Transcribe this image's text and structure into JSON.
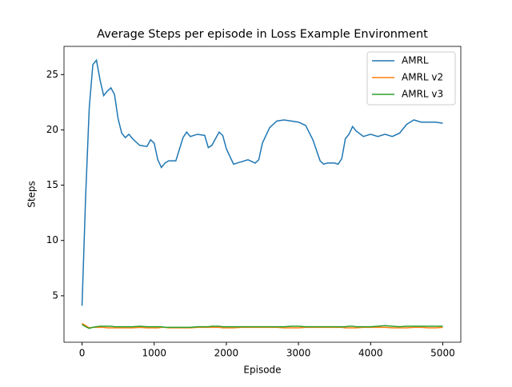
{
  "chart_data": {
    "type": "line",
    "title": "Average Steps per episode in Loss Example Environment",
    "x_label": "Episode",
    "y_label": "Steps",
    "x": [
      0,
      50,
      100,
      150,
      200,
      250,
      300,
      350,
      400,
      450,
      500,
      550,
      600,
      650,
      700,
      800,
      900,
      950,
      1000,
      1050,
      1100,
      1150,
      1200,
      1300,
      1400,
      1450,
      1500,
      1600,
      1700,
      1750,
      1800,
      1900,
      1950,
      2000,
      2100,
      2200,
      2300,
      2400,
      2450,
      2500,
      2600,
      2700,
      2800,
      2900,
      3000,
      3100,
      3200,
      3300,
      3350,
      3400,
      3500,
      3550,
      3600,
      3650,
      3700,
      3750,
      3800,
      3900,
      4000,
      4100,
      4200,
      4300,
      4400,
      4500,
      4600,
      4700,
      4800,
      4900,
      5000
    ],
    "series": [
      {
        "name": "AMRL",
        "color": "#1f77b4",
        "values": [
          4.1,
          14,
          22,
          25.9,
          26.3,
          24.5,
          23.1,
          23.5,
          23.8,
          23.2,
          21,
          19.7,
          19.3,
          19.6,
          19.2,
          18.6,
          18.5,
          19.1,
          18.8,
          17.3,
          16.6,
          17,
          17.2,
          17.2,
          19.3,
          19.8,
          19.4,
          19.6,
          19.5,
          18.4,
          18.6,
          19.8,
          19.5,
          18.3,
          16.9,
          17.1,
          17.3,
          17,
          17.3,
          18.8,
          20.2,
          20.8,
          20.9,
          20.8,
          20.7,
          20.4,
          19.1,
          17.2,
          16.9,
          17,
          17,
          16.9,
          17.4,
          19.2,
          19.6,
          20.3,
          19.9,
          19.4,
          19.6,
          19.4,
          19.6,
          19.4,
          19.7,
          20.5,
          20.9,
          20.7,
          20.7,
          20.7,
          20.6
        ]
      },
      {
        "name": "AMRL v2",
        "color": "#ff7f0e",
        "values": [
          2.5,
          2.3,
          2.1,
          2.15,
          2.15,
          2.15,
          2.15,
          2.1,
          2.1,
          2.1,
          2.1,
          2.1,
          2.1,
          2.1,
          2.1,
          2.15,
          2.1,
          2.1,
          2.1,
          2.1,
          2.15,
          2.15,
          2.1,
          2.1,
          2.1,
          2.1,
          2.1,
          2.15,
          2.15,
          2.15,
          2.15,
          2.15,
          2.1,
          2.1,
          2.1,
          2.15,
          2.15,
          2.15,
          2.15,
          2.15,
          2.15,
          2.15,
          2.1,
          2.1,
          2.1,
          2.15,
          2.15,
          2.15,
          2.15,
          2.15,
          2.15,
          2.15,
          2.15,
          2.1,
          2.1,
          2.1,
          2.1,
          2.15,
          2.15,
          2.15,
          2.15,
          2.1,
          2.1,
          2.1,
          2.15,
          2.15,
          2.1,
          2.1,
          2.15
        ]
      },
      {
        "name": "AMRL v3",
        "color": "#2ca02c",
        "values": [
          2.4,
          2.2,
          2.05,
          2.15,
          2.2,
          2.25,
          2.25,
          2.25,
          2.25,
          2.2,
          2.2,
          2.2,
          2.2,
          2.2,
          2.2,
          2.25,
          2.2,
          2.2,
          2.2,
          2.2,
          2.2,
          2.15,
          2.15,
          2.15,
          2.15,
          2.15,
          2.15,
          2.2,
          2.2,
          2.2,
          2.25,
          2.25,
          2.2,
          2.2,
          2.2,
          2.2,
          2.2,
          2.2,
          2.2,
          2.2,
          2.2,
          2.2,
          2.2,
          2.25,
          2.25,
          2.2,
          2.2,
          2.2,
          2.2,
          2.2,
          2.2,
          2.2,
          2.2,
          2.2,
          2.25,
          2.25,
          2.2,
          2.2,
          2.2,
          2.25,
          2.3,
          2.25,
          2.2,
          2.25,
          2.25,
          2.25,
          2.25,
          2.25,
          2.25
        ]
      }
    ],
    "xlim": [
      -250,
      5250
    ],
    "xticks": [
      0,
      1000,
      2000,
      3000,
      4000,
      5000
    ],
    "ylim": [
      0.8,
      27.55
    ],
    "yticks": [
      5,
      10,
      15,
      20,
      25
    ],
    "legend": "upper right",
    "grid": false
  }
}
